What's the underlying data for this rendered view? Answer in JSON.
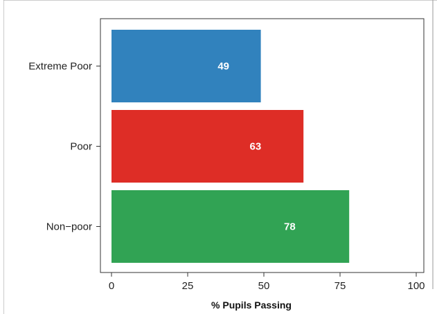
{
  "chart_data": {
    "type": "bar",
    "orientation": "horizontal",
    "title": "",
    "xlabel": "% Pupils Passing",
    "ylabel": "",
    "xlim": [
      0,
      100
    ],
    "xticks": [
      "0",
      "25",
      "50",
      "75",
      "100"
    ],
    "categories": [
      "Extreme Poor",
      "Poor",
      "Non−poor"
    ],
    "values": [
      49,
      63,
      78
    ],
    "value_labels": [
      "49",
      "63",
      "78"
    ],
    "colors": [
      "#3182bd",
      "#de2d26",
      "#31a354"
    ],
    "grid": false,
    "legend": "none"
  }
}
